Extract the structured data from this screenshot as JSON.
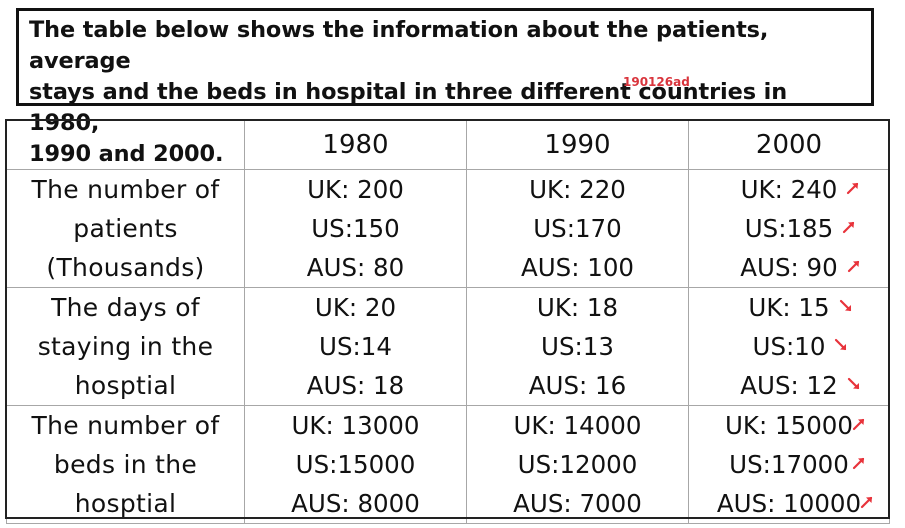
{
  "title": {
    "lines": [
      "The table below shows the information about the patients, average",
      "stays and the beds in hospital in three different countries in 1980,",
      "1990 and 2000."
    ],
    "code": "190126ad"
  },
  "table": {
    "columns": [
      "1980",
      "1990",
      "2000"
    ],
    "rows": [
      {
        "metric_lines": [
          "The number of",
          "patients",
          "(Thousands)"
        ],
        "cells": [
          [
            "UK: 200",
            "US:150",
            "AUS: 80"
          ],
          [
            "UK: 220",
            "US:170",
            "AUS: 100"
          ],
          [
            "UK: 240",
            "US:185",
            "AUS: 90"
          ]
        ],
        "trend_2000": [
          "up",
          "up",
          "up"
        ]
      },
      {
        "metric_lines": [
          "The days of",
          "staying in the",
          "hosptial"
        ],
        "cells": [
          [
            "UK: 20",
            "US:14",
            "AUS: 18"
          ],
          [
            "UK: 18",
            "US:13",
            "AUS: 16"
          ],
          [
            "UK: 15",
            "US:10",
            "AUS: 12"
          ]
        ],
        "trend_2000": [
          "down",
          "down",
          "down"
        ]
      },
      {
        "metric_lines": [
          "The number of",
          "beds in the",
          "hosptial"
        ],
        "cells": [
          [
            "UK: 13000",
            "US:15000",
            "AUS: 8000"
          ],
          [
            "UK: 14000",
            "US:12000",
            "AUS: 7000"
          ],
          [
            "UK: 15000",
            "US:17000",
            "AUS: 10000"
          ]
        ],
        "trend_2000": [
          "up",
          "up",
          "up"
        ]
      }
    ]
  },
  "colors": {
    "text": "#111111",
    "grid": "#a7a7a7",
    "arrow": "#e8333b",
    "code": "#d9343c"
  },
  "icons": {
    "up": "arrow-up-right-icon",
    "down": "arrow-down-right-icon"
  }
}
